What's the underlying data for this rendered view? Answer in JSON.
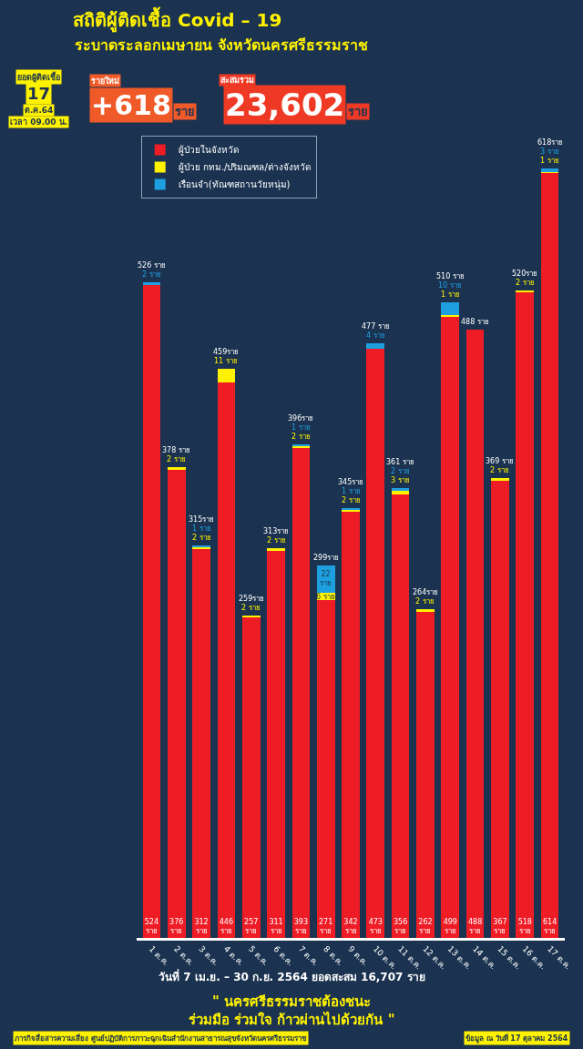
{
  "chart_data": {
    "type": "bar",
    "stacked": true,
    "title": "สถิติผู้ติดเชื้อ Covid – 19",
    "subtitle": "ระบาดระลอกเมษายน จังหวัดนครศรีธรรมราช",
    "categories": [
      "1 ต.ค.",
      "2 ต.ค.",
      "3 ต.ค.",
      "4 ต.ค.",
      "5 ต.ค.",
      "6 ต.ค.",
      "7 ต.ค.",
      "8 ต.ค.",
      "9 ต.ค.",
      "10 ต.ค.",
      "11 ต.ค.",
      "12 ต.ค.",
      "13 ต.ค.",
      "14 ต.ค.",
      "15 ต.ค.",
      "16 ต.ค.",
      "17 ต.ค."
    ],
    "series": [
      {
        "name": "ผู้ป่วยในจังหวัด",
        "color": "#ee1c25",
        "values": [
          524,
          376,
          312,
          446,
          257,
          311,
          393,
          271,
          342,
          473,
          356,
          262,
          499,
          488,
          367,
          518,
          614
        ],
        "value_labels": [
          "524 ราย",
          "376 ราย",
          "312 ราย",
          "446 ราย",
          "257 ราย",
          "311 ราย",
          "393 ราย",
          "271 ราย",
          "342 ราย",
          "473 ราย",
          "356 ราย",
          "262 ราย",
          "499 ราย",
          "488 ราย",
          "367 ราย",
          "518 ราย",
          "614 ราย"
        ]
      },
      {
        "name": "ผู้ป่วย กทม./ปริมณฑล/ต่างจังหวัด",
        "color": "#fff200",
        "values": [
          null,
          2,
          2,
          11,
          2,
          2,
          2,
          6,
          2,
          null,
          3,
          2,
          1,
          null,
          2,
          2,
          1
        ],
        "value_labels": [
          null,
          "2 ราย",
          "2 ราย",
          "11 ราย",
          "2 ราย",
          "2 ราย",
          "2 ราย",
          "6 ราย",
          "2 ราย",
          null,
          "3 ราย",
          "2 ราย",
          "1 ราย",
          null,
          "2 ราย",
          "2 ราย",
          "1 ราย"
        ]
      },
      {
        "name": "เรือนจำ(ทัณฑสถานวัยหนุ่ม)",
        "color": "#1ea0e0",
        "values": [
          2,
          null,
          1,
          null,
          null,
          null,
          1,
          22,
          1,
          4,
          2,
          null,
          10,
          null,
          null,
          null,
          3
        ],
        "value_labels": [
          "2 ราย",
          null,
          "1 ราย",
          null,
          null,
          null,
          "1 ราย",
          "22 ราย",
          "1 ราย",
          "4 ราย",
          "2 ราย",
          null,
          "10 ราย",
          null,
          null,
          null,
          "3 ราย"
        ]
      }
    ],
    "totals": [
      "526 ราย",
      "378 ราย",
      "315ราย",
      "459ราย",
      "259ราย",
      "313ราย",
      "396ราย",
      "299ราย",
      "345ราย",
      "477 ราย",
      "361 ราย",
      "264ราย",
      "510 ราย",
      "488 ราย",
      "369 ราย",
      "520ราย",
      "618ราย"
    ],
    "tick_labels": "x",
    "grid": false,
    "legend": "top left",
    "annotations": [
      "ยอดผู้ติดเชื้อ",
      "17",
      "ต.ค.64",
      "เวลา 09.00 น.",
      "รายใหม่",
      "+618",
      "ราย",
      "สะสมรวม",
      "23,602",
      "ราย",
      "วันที่ 7 เม.ย. – 30 ก.ย. 2564 ยอดสะสม 16,707 ราย",
      "\" นครศรีธรรมราชต้องชนะ",
      "ร่วมมือ ร่วมใจ ก้าวผ่านไปด้วยกัน \"",
      "ภารกิจสื่อสารความเสี่ยง ศูนย์ปฏิบัติการภาวะฉุกเฉินสำนักงานสาธารณสุขจังหวัดนครศรีธรรมราช",
      "ข้อมูล ณ วันที่ 17 ตุลาคม 2564"
    ]
  }
}
